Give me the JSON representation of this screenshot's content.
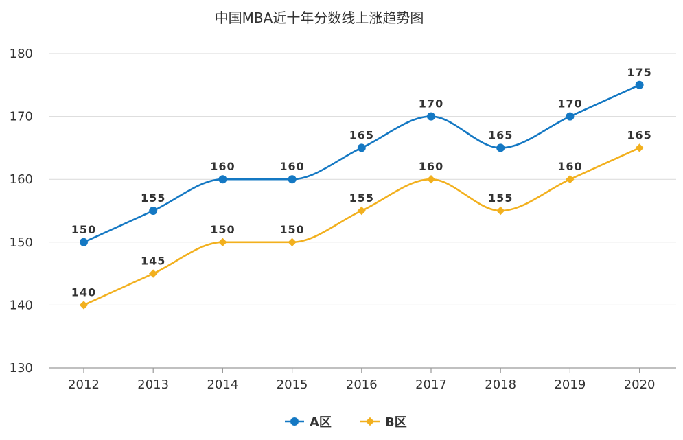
{
  "chart_data": {
    "type": "line",
    "title": "中国MBA近十年分数线上涨趋势图",
    "categories": [
      "2012",
      "2013",
      "2014",
      "2015",
      "2016",
      "2017",
      "2018",
      "2019",
      "2020"
    ],
    "ylim": [
      130,
      180
    ],
    "yticks": [
      130,
      140,
      150,
      160,
      170,
      180
    ],
    "grid": true,
    "smooth": true,
    "legend_position": "bottom-center",
    "series": [
      {
        "name": "A区",
        "values": [
          150,
          155,
          160,
          160,
          165,
          170,
          165,
          170,
          175
        ],
        "color": "#1478c3",
        "marker": "circle"
      },
      {
        "name": "B区",
        "values": [
          140,
          145,
          150,
          150,
          155,
          160,
          155,
          160,
          165
        ],
        "color": "#f2b01e",
        "marker": "diamond"
      }
    ]
  }
}
